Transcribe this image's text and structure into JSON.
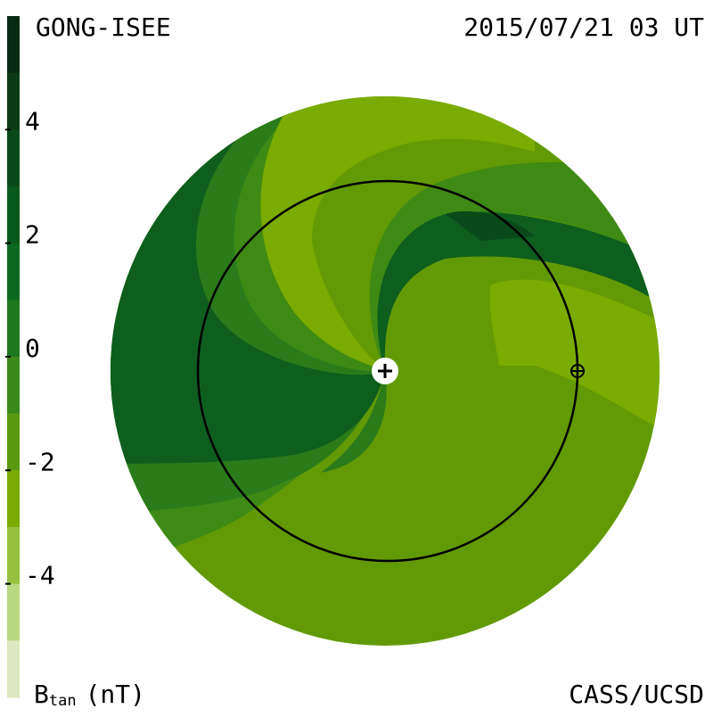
{
  "header": {
    "left": "GONG-ISEE",
    "right": "2015/07/21 03 UT"
  },
  "footer": {
    "right": "CASS/UCSD"
  },
  "colorbar": {
    "symbol": "B",
    "subscript": "tan",
    "unit": "(nT)",
    "lim": [
      -6,
      6
    ],
    "ticks": [
      4,
      2,
      0,
      -2,
      -4
    ],
    "colors": [
      "#0b2a13",
      "#0b3a17",
      "#0a4a1a",
      "#09591c",
      "#0a691e",
      "#1c781e",
      "#3b891a",
      "#5a9a10",
      "#7aab00",
      "#98c040",
      "#b9d880",
      "#dde8c0"
    ]
  }
}
